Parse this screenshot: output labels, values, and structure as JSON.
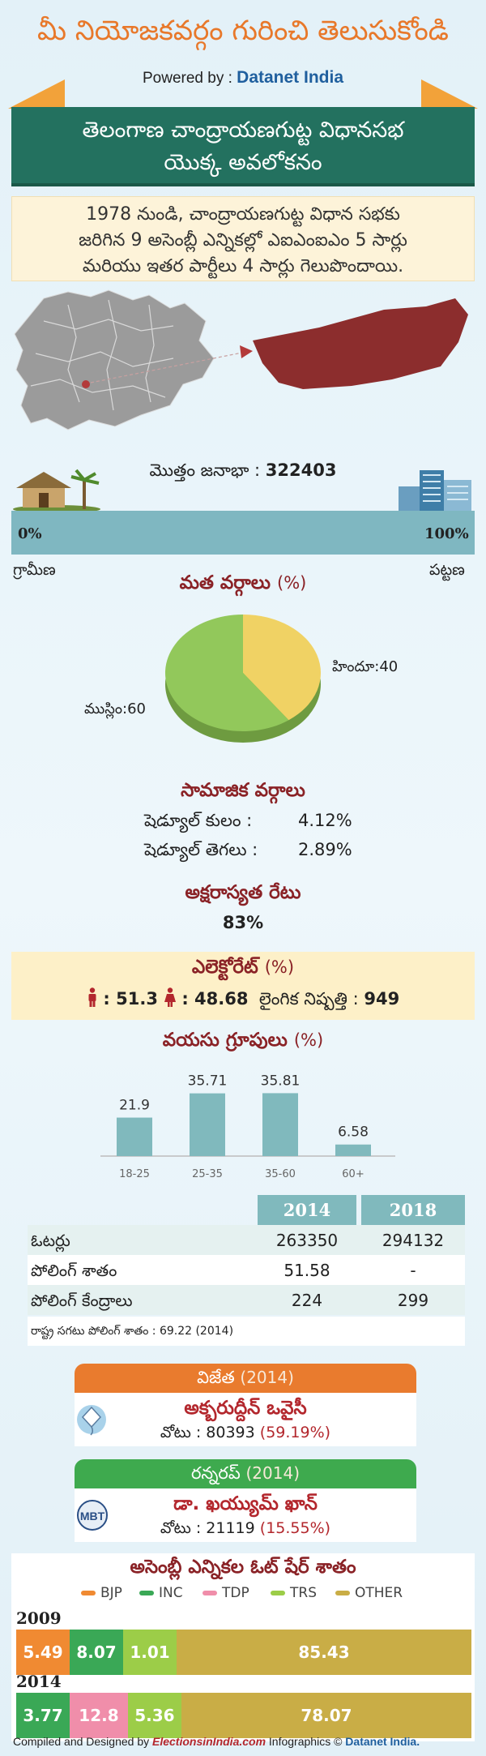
{
  "header": {
    "title": "మీ నియోజకవర్గం గురించి తెలుసుకోండి",
    "powered_by": "Powered by : ",
    "brand": "Datanet India"
  },
  "banner": {
    "line1": "తెలంగాణ చాంద్రాయణగుట్ట విధానసభ",
    "line2": "యొక్క అవలోకనం"
  },
  "intro": {
    "line1": "1978 నుండి, చాంద్రాయణగుట్ట విధాన సభకు",
    "line2": "జరిగిన 9 అసెంబ్లీ ఎన్నికల్లో ఎఐఎంఐఎం 5 సార్లు",
    "line3": "మరియు ఇతర పార్టీలు 4 సార్లు గెలుపొందాయి."
  },
  "population": {
    "label": "మొత్తం జనాభా : ",
    "value": "322403"
  },
  "urban_scale": {
    "left": "0%",
    "right": "100%",
    "rural_label": "గ్రామీణ",
    "urban_label": "పట్టణ"
  },
  "religion": {
    "title": "మత వర్గాలు",
    "unit": "(%)",
    "hindu_label": "హిందూ:40",
    "muslim_label": "ముస్లిం:60",
    "chart_data": {
      "type": "pie",
      "labels": [
        "హిందూ",
        "ముస్లిం"
      ],
      "values": [
        40,
        60
      ],
      "colors": [
        "#f0d264",
        "#92c85b"
      ]
    }
  },
  "social": {
    "title": "సామాజిక వర్గాలు",
    "sc_label": "షెడ్యూల్ కులం :",
    "sc_value": "4.12%",
    "st_label": "షెడ్యూల్ తెగలు :",
    "st_value": "2.89%"
  },
  "literacy": {
    "title": "అక్షరాస్యత రేటు",
    "value": "83%"
  },
  "electorate": {
    "title": "ఎలెక్టోరేట్",
    "unit": "(%)",
    "male": ": 51.3",
    "female": ": 48.68",
    "sex_ratio_label": "లైంగిక నిష్పత్తి : ",
    "sex_ratio": "949"
  },
  "age_groups": {
    "title": "వయసు గ్రూపులు",
    "unit": "(%)",
    "chart_data": {
      "type": "bar",
      "categories": [
        "18-25",
        "25-35",
        "35-60",
        "60+"
      ],
      "values": [
        21.9,
        35.71,
        35.81,
        6.58
      ],
      "value_labels": [
        "21.9",
        "35.71",
        "35.81",
        "6.58"
      ],
      "color": "#80b9bd"
    }
  },
  "voting_table": {
    "col_2014": "2014",
    "col_2018": "2018",
    "rows": [
      {
        "label": "ఓటర్లు",
        "v2014": "263350",
        "v2018": "294132"
      },
      {
        "label": "పోలింగ్ శాతం",
        "v2014": "51.58",
        "v2018": "-"
      },
      {
        "label": "పోలింగ్ కేంద్రాలు",
        "v2014": "224",
        "v2018": "299"
      }
    ],
    "note": "రాష్ట్ర సగటు పోలింగ్ శాతం : 69.22 (2014)"
  },
  "winner": {
    "label": "విజేత",
    "year": "(2014)",
    "name": "అక్బరుద్దీన్ ఒవైసీ",
    "votes_label": "వోటు : 80393",
    "votes_pct": "(59.19%)"
  },
  "runner_up": {
    "label": "రన్నరప్",
    "year": "(2014)",
    "name": "డా. ఖయ్యుమ్ ఖాన్",
    "votes_label": "వోటు : 21119",
    "votes_pct": "(15.55%)",
    "logo_text": "MBT"
  },
  "vote_share": {
    "title": "అసెంబ్లీ ఎన్నికల ఓట్ షేర్ శాతం",
    "legend": [
      {
        "name": "BJP",
        "color": "#f08a32"
      },
      {
        "name": "INC",
        "color": "#3aa856"
      },
      {
        "name": "TDP",
        "color": "#f08eaa"
      },
      {
        "name": "TRS",
        "color": "#9ccd48"
      },
      {
        "name": "OTHER",
        "color": "#c9ad46"
      }
    ],
    "chart_data": {
      "type": "bar",
      "orientation": "horizontal-stacked",
      "categories": [
        "2009",
        "2014"
      ],
      "series": [
        {
          "name": "2009",
          "segments": [
            {
              "party": "BJP",
              "value": 5.49,
              "label": "5.49"
            },
            {
              "party": "INC",
              "value": 8.07,
              "label": "8.07"
            },
            {
              "party": "TRS",
              "value": 1.01,
              "label": "1.01"
            },
            {
              "party": "OTHER",
              "value": 85.43,
              "label": "85.43"
            }
          ]
        },
        {
          "name": "2014",
          "segments": [
            {
              "party": "INC",
              "value": 3.77,
              "label": "3.77"
            },
            {
              "party": "TDP",
              "value": 12.8,
              "label": "12.8"
            },
            {
              "party": "TRS",
              "value": 5.36,
              "label": "5.36"
            },
            {
              "party": "OTHER",
              "value": 78.07,
              "label": "78.07"
            }
          ]
        }
      ]
    }
  },
  "footer": {
    "compiled": "Compiled and Designed by ",
    "site": "ElectionsinIndia.com",
    "infographics": " Infographics © ",
    "brand": "Datanet India."
  }
}
